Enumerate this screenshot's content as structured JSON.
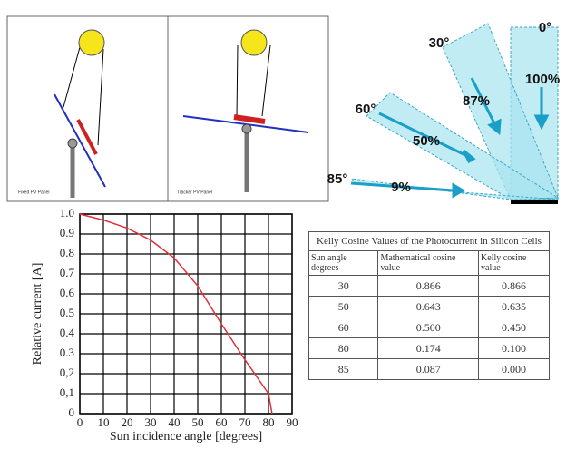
{
  "diagram": {
    "panels": [
      "Fixed PV Panel",
      "Tracker PV Panel"
    ],
    "angles": [
      "0°",
      "30°",
      "60°",
      "85°"
    ],
    "percents": [
      "100%",
      "87%",
      "50%",
      "9%"
    ]
  },
  "chart_data": {
    "type": "line",
    "x_label": "Sun incidence angle [degrees]",
    "y_label": "Relative current [A]",
    "x": [
      0,
      10,
      20,
      30,
      40,
      50,
      60,
      70,
      80,
      81.5
    ],
    "series": [
      {
        "color": "#e0303a",
        "values": [
          1.0,
          0.97,
          0.93,
          0.87,
          0.78,
          0.64,
          0.45,
          0.27,
          0.1,
          0
        ]
      }
    ],
    "xlim": [
      0,
      90
    ],
    "ylim": [
      0,
      1
    ],
    "xticks": [
      0,
      10,
      20,
      30,
      40,
      50,
      60,
      70,
      80,
      90
    ],
    "yticks": [
      0,
      {
        "value": 0.1,
        "label": "0,1"
      },
      {
        "value": 0.2,
        "label": "0,2"
      },
      0.3,
      0.4,
      0.5,
      0.6,
      0.7,
      0.8,
      0.9,
      {
        "value": 1,
        "label": "1.0"
      }
    ],
    "grid": true
  },
  "table": {
    "title": "Kelly Cosine Values of the Photocurrent in Silicon Cells",
    "header": [
      "Sun angle degrees",
      "Mathematical cosine value",
      "Kelly cosine value"
    ],
    "rows": [
      [
        "30",
        "0.866",
        "0.866"
      ],
      [
        "50",
        "0.643",
        "0.635"
      ],
      [
        "60",
        "0.500",
        "0.450"
      ],
      [
        "80",
        "0.174",
        "0.100"
      ],
      [
        "85",
        "0.087",
        "0.000"
      ]
    ]
  }
}
